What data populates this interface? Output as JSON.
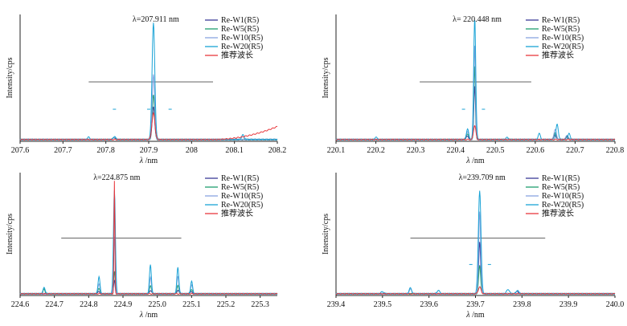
{
  "chart_data": [
    {
      "type": "line",
      "annotation": "λ=207.911 nm",
      "xlabel_italic": "λ",
      "xlabel_unit": " /nm",
      "ylabel": "Intensity/cps",
      "xlim": [
        207.6,
        208.2
      ],
      "ylim": [
        0,
        1
      ],
      "xticks": [
        "207.6",
        "207.7",
        "207.8",
        "207.9",
        "208",
        "208.1",
        "208.2"
      ],
      "xtick_values": [
        207.6,
        207.7,
        207.8,
        207.9,
        208.0,
        208.1,
        208.2
      ],
      "legend": [
        "Re-W1(R5)",
        "Re-W5(R5)",
        "Re-W10(R5)",
        "Re-W20(R5)",
        "推荐波长"
      ],
      "peak_x": 207.911,
      "bar_x": [
        207.76,
        208.05
      ],
      "bar_y": 0.5,
      "dash_x": [
        207.82,
        207.9,
        207.95
      ],
      "dash_y": 0.27,
      "series": [
        {
          "name": "Re-W1(R5)",
          "color": "#3b3b98",
          "peak": 0.28,
          "width": 0.004,
          "small": [
            [
              207.82,
              0.015
            ]
          ]
        },
        {
          "name": "Re-W5(R5)",
          "color": "#1e9e6e",
          "peak": 0.38,
          "width": 0.004,
          "small": [
            [
              207.82,
              0.02
            ]
          ]
        },
        {
          "name": "Re-W10(R5)",
          "color": "#88a4e0",
          "peak": 0.55,
          "width": 0.004,
          "small": [
            [
              207.82,
              0.02
            ]
          ]
        },
        {
          "name": "Re-W20(R5)",
          "color": "#1aa3d6",
          "peak": 0.98,
          "width": 0.0045,
          "small": [
            [
              207.76,
              0.02
            ],
            [
              207.82,
              0.025
            ],
            [
              208.12,
              0.04
            ]
          ]
        },
        {
          "name": "推荐波长",
          "color": "#e8383d",
          "peak": 0.22,
          "width": 0.005,
          "small": [],
          "rise": true
        }
      ]
    },
    {
      "type": "line",
      "annotation": "λ= 220.448 nm",
      "xlabel_italic": "λ",
      "xlabel_unit": " /nm",
      "ylabel": "Intensity/cps",
      "xlim": [
        220.1,
        220.8
      ],
      "ylim": [
        0,
        1
      ],
      "xticks": [
        "220.1",
        "220.2",
        "220.3",
        "220.4",
        "220.5",
        "220.6",
        "220.7",
        "220.8"
      ],
      "xtick_values": [
        220.1,
        220.2,
        220.3,
        220.4,
        220.5,
        220.6,
        220.7,
        220.8
      ],
      "legend": [
        "Re-W1(R5)",
        "Re-W5(R5)",
        "Re-W10(R5)",
        "Re-W20(R5)",
        "推荐波长"
      ],
      "peak_x": 220.448,
      "bar_x": [
        220.31,
        220.59
      ],
      "bar_y": 0.5,
      "dash_x": [
        220.42,
        220.47
      ],
      "dash_y": 0.27,
      "series": [
        {
          "name": "Re-W1(R5)",
          "color": "#3b3b98",
          "peak": 0.45,
          "width": 0.003,
          "small": [
            [
              220.43,
              0.03
            ],
            [
              220.65,
              0.04
            ],
            [
              220.68,
              0.02
            ]
          ]
        },
        {
          "name": "Re-W5(R5)",
          "color": "#1e9e6e",
          "peak": 0.62,
          "width": 0.003,
          "small": [
            [
              220.43,
              0.05
            ],
            [
              220.65,
              0.06
            ],
            [
              220.68,
              0.03
            ]
          ]
        },
        {
          "name": "Re-W10(R5)",
          "color": "#88a4e0",
          "peak": 0.8,
          "width": 0.003,
          "small": [
            [
              220.43,
              0.07
            ],
            [
              220.65,
              0.09
            ],
            [
              220.68,
              0.04
            ]
          ]
        },
        {
          "name": "Re-W20(R5)",
          "color": "#1aa3d6",
          "peak": 0.99,
          "width": 0.0035,
          "small": [
            [
              220.2,
              0.02
            ],
            [
              220.43,
              0.09
            ],
            [
              220.45,
              0.06
            ],
            [
              220.53,
              0.02
            ],
            [
              220.61,
              0.05
            ],
            [
              220.655,
              0.13
            ],
            [
              220.685,
              0.05
            ]
          ]
        },
        {
          "name": "推荐波长",
          "color": "#e8383d",
          "peak": 0.12,
          "width": 0.004,
          "small": []
        }
      ]
    },
    {
      "type": "line",
      "annotation": "λ=224.875 nm",
      "xlabel_italic": "λ",
      "xlabel_unit": " /nm",
      "ylabel": "Intensity/cps",
      "xlim": [
        224.6,
        225.35
      ],
      "ylim": [
        0,
        1
      ],
      "xticks": [
        "224.6",
        "224.7",
        "224.8",
        "224.9",
        "225.0",
        "225.1",
        "225.2",
        "225.3"
      ],
      "xtick_values": [
        224.6,
        224.7,
        224.8,
        224.9,
        225.0,
        225.1,
        225.2,
        225.3
      ],
      "legend": [
        "Re-W1(R5)",
        "Re-W5(R5)",
        "Re-W10(R5)",
        "Re-W20(R5)",
        "推荐波长"
      ],
      "peak_x": 224.875,
      "bar_x": [
        224.72,
        225.07
      ],
      "bar_y": 0.5,
      "dash_x": [],
      "dash_y": 0.27,
      "series": [
        {
          "name": "Re-W1(R5)",
          "color": "#3b3b98",
          "peak": 0.12,
          "width": 0.003,
          "small": [
            [
              224.83,
              0.02
            ],
            [
              224.98,
              0.03
            ],
            [
              225.06,
              0.03
            ],
            [
              225.1,
              0.02
            ]
          ]
        },
        {
          "name": "Re-W5(R5)",
          "color": "#1e9e6e",
          "peak": 0.2,
          "width": 0.003,
          "small": [
            [
              224.67,
              0.04
            ],
            [
              224.83,
              0.05
            ],
            [
              224.98,
              0.07
            ],
            [
              225.06,
              0.07
            ],
            [
              225.1,
              0.04
            ]
          ]
        },
        {
          "name": "Re-W10(R5)",
          "color": "#88a4e0",
          "peak": 0.5,
          "width": 0.003,
          "small": [
            [
              224.83,
              0.09
            ],
            [
              224.98,
              0.14
            ],
            [
              225.06,
              0.15
            ],
            [
              225.1,
              0.08
            ]
          ]
        },
        {
          "name": "Re-W20(R5)",
          "color": "#1aa3d6",
          "peak": 0.9,
          "width": 0.004,
          "small": [
            [
              224.67,
              0.06
            ],
            [
              224.83,
              0.15
            ],
            [
              224.98,
              0.25
            ],
            [
              225.06,
              0.23
            ],
            [
              225.1,
              0.11
            ]
          ]
        },
        {
          "name": "推荐波长",
          "color": "#e8383d",
          "peak": 0.98,
          "width": 0.0018,
          "small": []
        }
      ]
    },
    {
      "type": "line",
      "annotation": "λ=239.709 nm",
      "xlabel_italic": "λ",
      "xlabel_unit": " /nm",
      "ylabel": "Intensity/cps",
      "xlim": [
        239.4,
        240.0
      ],
      "ylim": [
        0,
        1
      ],
      "xticks": [
        "239.4",
        "239.5",
        "239.6",
        "239.7",
        "239.8",
        "239.9",
        "240.0"
      ],
      "xtick_values": [
        239.4,
        239.5,
        239.6,
        239.7,
        239.8,
        239.9,
        240.0
      ],
      "legend": [
        "Re-W1(R5)",
        "Re-W5(R5)",
        "Re-W10(R5)",
        "Re-W20(R5)",
        "推荐波长"
      ],
      "peak_x": 239.709,
      "bar_x": [
        239.56,
        239.85
      ],
      "bar_y": 0.5,
      "dash_x": [
        239.69,
        239.73
      ],
      "dash_y": 0.27,
      "series": [
        {
          "name": "Re-W1(R5)",
          "color": "#3b3b98",
          "peak": 0.45,
          "width": 0.003,
          "small": [
            [
              239.79,
              0.02
            ]
          ]
        },
        {
          "name": "Re-W5(R5)",
          "color": "#1e9e6e",
          "peak": 0.25,
          "width": 0.003,
          "small": []
        },
        {
          "name": "Re-W10(R5)",
          "color": "#88a4e0",
          "peak": 0.72,
          "width": 0.003,
          "small": [
            [
              239.56,
              0.04
            ]
          ]
        },
        {
          "name": "Re-W20(R5)",
          "color": "#1aa3d6",
          "peak": 0.9,
          "width": 0.004,
          "small": [
            [
              239.5,
              0.02
            ],
            [
              239.56,
              0.05
            ],
            [
              239.62,
              0.03
            ],
            [
              239.77,
              0.04
            ],
            [
              239.79,
              0.03
            ]
          ]
        },
        {
          "name": "推荐波长",
          "color": "#e8383d",
          "peak": 0.06,
          "width": 0.004,
          "small": []
        }
      ]
    }
  ]
}
